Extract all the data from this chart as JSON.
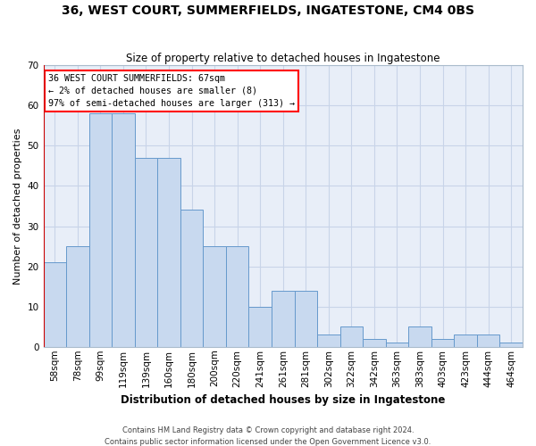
{
  "title": "36, WEST COURT, SUMMERFIELDS, INGATESTONE, CM4 0BS",
  "subtitle": "Size of property relative to detached houses in Ingatestone",
  "xlabel": "Distribution of detached houses by size in Ingatestone",
  "ylabel": "Number of detached properties",
  "categories": [
    "58sqm",
    "78sqm",
    "99sqm",
    "119sqm",
    "139sqm",
    "160sqm",
    "180sqm",
    "200sqm",
    "220sqm",
    "241sqm",
    "261sqm",
    "281sqm",
    "302sqm",
    "322sqm",
    "342sqm",
    "363sqm",
    "383sqm",
    "403sqm",
    "423sqm",
    "444sqm",
    "464sqm"
  ],
  "values": [
    21,
    25,
    58,
    58,
    47,
    47,
    34,
    25,
    25,
    10,
    14,
    14,
    3,
    5,
    2,
    1,
    5,
    2,
    3,
    3,
    1
  ],
  "bar_color": "#c8d9ef",
  "bar_edge_color": "#6699cc",
  "annotation_title": "36 WEST COURT SUMMERFIELDS: 67sqm",
  "annotation_line1": "← 2% of detached houses are smaller (8)",
  "annotation_line2": "97% of semi-detached houses are larger (313) →",
  "vline_color": "#cc0000",
  "grid_color": "#c8d4e8",
  "background_color": "#e8eef8",
  "footer1": "Contains HM Land Registry data © Crown copyright and database right 2024.",
  "footer2": "Contains public sector information licensed under the Open Government Licence v3.0.",
  "ylim": [
    0,
    70
  ],
  "yticks": [
    0,
    10,
    20,
    30,
    40,
    50,
    60,
    70
  ],
  "title_fontsize": 10,
  "subtitle_fontsize": 8.5
}
